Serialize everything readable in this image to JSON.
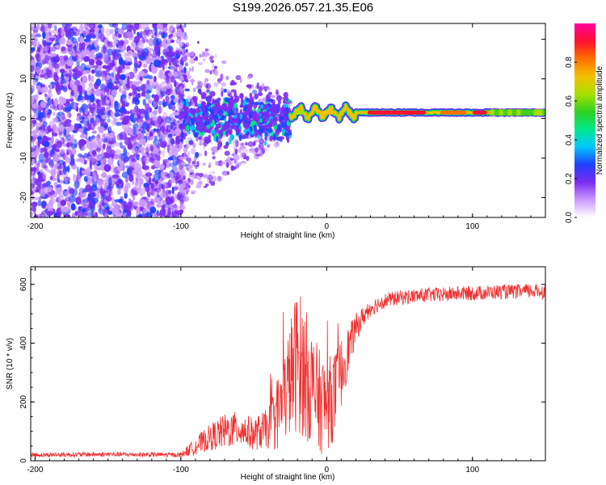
{
  "page": {
    "title": "S199.2026.057.21.35.E06"
  },
  "chart_data": [
    {
      "type": "heatmap",
      "title": "S199.2026.057.21.35.E06",
      "xlabel": "Height of straight line (km)",
      "ylabel": "Frequency (Hz)",
      "xlim": [
        -203,
        150
      ],
      "ylim": [
        -25,
        24
      ],
      "xticks": [
        -200,
        -100,
        0,
        100
      ],
      "yticks": [
        -20,
        -10,
        0,
        10,
        20
      ],
      "colorbar": {
        "label": "Normalized spectral amplitude",
        "range": [
          0,
          1
        ],
        "ticks": [
          "0.0",
          "0.2",
          "0.4",
          "0.6",
          "0.8"
        ],
        "tick_values": [
          0.0,
          0.2,
          0.4,
          0.6,
          0.8
        ],
        "colors": [
          "#ffffff",
          "#cc99ff",
          "#7b2cf0",
          "#2040ff",
          "#00c8ff",
          "#00e88a",
          "#30d020",
          "#a8e000",
          "#f4c000",
          "#ff7000",
          "#ff1030",
          "#ff00a0"
        ]
      },
      "features": [
        {
          "name": "noise-region",
          "x_range": [
            -203,
            -97
          ],
          "freq_range": [
            -25,
            24
          ],
          "amplitude": 0.1
        },
        {
          "name": "transition-cluster",
          "x_range": [
            -100,
            -25
          ],
          "freq_range": [
            -8,
            8
          ],
          "amplitude": 0.2
        },
        {
          "name": "narrow-band",
          "x_range": [
            -25,
            150
          ],
          "center_freq_hz": 1.5,
          "amplitude_peak": 0.95
        }
      ]
    },
    {
      "type": "line",
      "xlabel": "Height of straight line (km)",
      "ylabel": "SNR (10 * v/v)",
      "xlim": [
        -203,
        150
      ],
      "ylim": [
        0,
        660
      ],
      "xticks": [
        -200,
        -100,
        0,
        100
      ],
      "yticks": [
        0,
        200,
        400,
        600
      ],
      "line_color": "#f03030",
      "series": [
        {
          "name": "SNR",
          "x": [
            -200,
            -150,
            -100,
            -90,
            -80,
            -70,
            -60,
            -50,
            -40,
            -35,
            -30,
            -25,
            -20,
            -15,
            -10,
            -5,
            0,
            5,
            10,
            15,
            20,
            25,
            30,
            40,
            50,
            60,
            70,
            80,
            90,
            100,
            110,
            120,
            130,
            140,
            150
          ],
          "values": [
            20,
            22,
            20,
            50,
            80,
            100,
            110,
            90,
            110,
            150,
            200,
            280,
            350,
            300,
            250,
            200,
            190,
            220,
            300,
            380,
            450,
            490,
            520,
            545,
            555,
            560,
            565,
            565,
            570,
            570,
            572,
            575,
            575,
            578,
            575
          ],
          "noise_amplitude": [
            8,
            8,
            8,
            30,
            45,
            60,
            60,
            55,
            70,
            120,
            150,
            200,
            250,
            230,
            200,
            180,
            160,
            150,
            120,
            80,
            50,
            35,
            30,
            25,
            25,
            25,
            25,
            25,
            25,
            25,
            25,
            25,
            25,
            25,
            25
          ]
        }
      ]
    }
  ]
}
